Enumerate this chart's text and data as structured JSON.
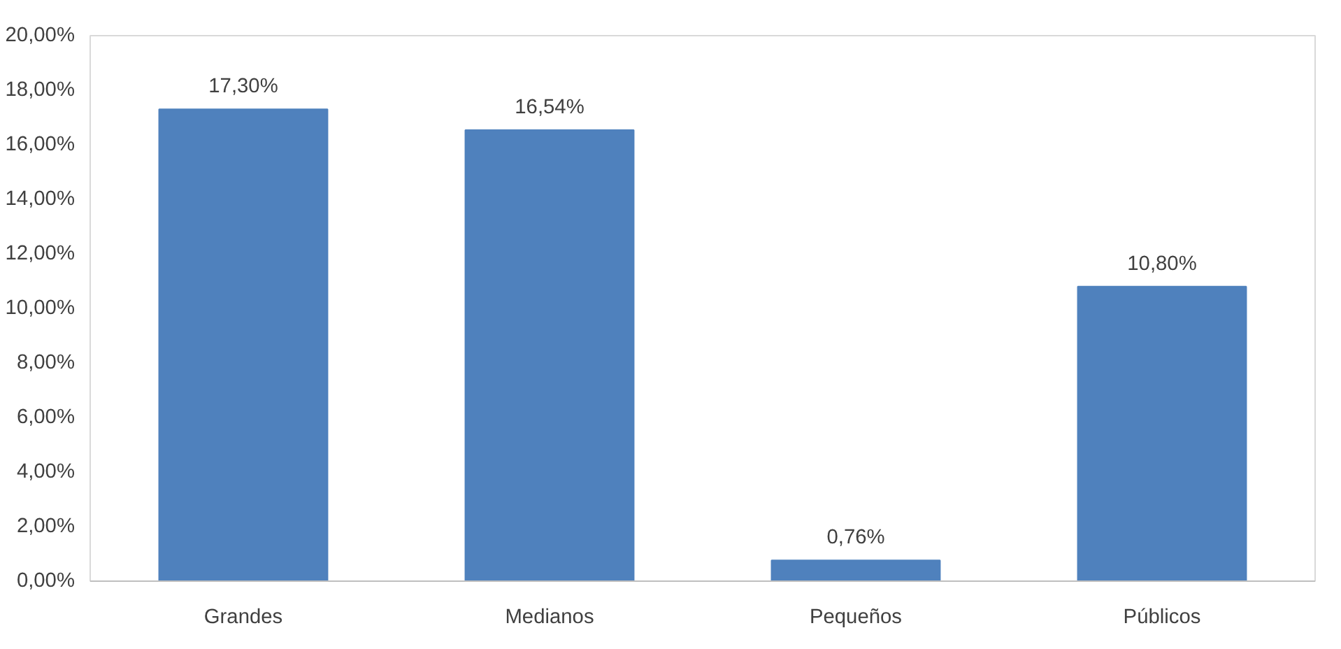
{
  "chart_data": {
    "type": "bar",
    "categories": [
      "Grandes",
      "Medianos",
      "Pequeños",
      "Públicos"
    ],
    "values": [
      17.3,
      16.54,
      0.76,
      10.8
    ],
    "color": "#4f81bd",
    "value_labels": [
      "17,30%",
      "16,54%",
      "0,76%",
      "10,80%"
    ],
    "ylim": [
      0,
      20
    ],
    "yticks": [
      {
        "value": 0,
        "label": "0,00%"
      },
      {
        "value": 2,
        "label": "2,00%"
      },
      {
        "value": 4,
        "label": "4,00%"
      },
      {
        "value": 6,
        "label": "6,00%"
      },
      {
        "value": 8,
        "label": "8,00%"
      },
      {
        "value": 10,
        "label": "10,00%"
      },
      {
        "value": 12,
        "label": "12,00%"
      },
      {
        "value": 14,
        "label": "14,00%"
      },
      {
        "value": 16,
        "label": "16,00%"
      },
      {
        "value": 18,
        "label": "18,00%"
      },
      {
        "value": 20,
        "label": "20,00%"
      }
    ],
    "grid": false
  }
}
